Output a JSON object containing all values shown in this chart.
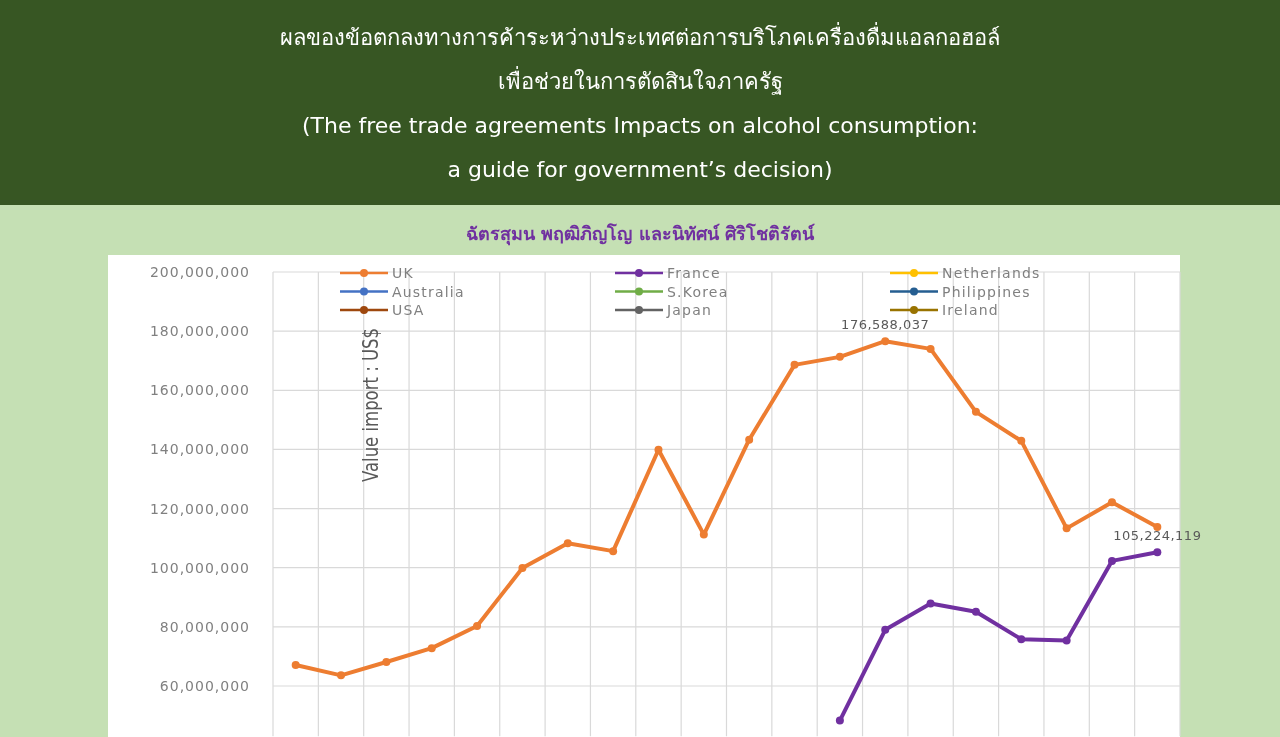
{
  "chart_data": {
    "type": "line",
    "title": "ผลของข้อตกลงทางการค้าระหว่างประเทศต่อการบริโภคเครื่องดื่มแอลกอฮอล์\nเพื่อช่วยในการตัดสินใจภาครัฐ\n(The free trade agreements Impacts on alcohol consumption:\na guide for government’s decision)",
    "subtitle": "ฉัตรสุมน พฤฒิภิญโญ  และนิทัศน์ ศิริโชติรัตน์",
    "ylabel": "Value import : US$",
    "categories": [
      null,
      null,
      null,
      null,
      null,
      null,
      null,
      null,
      null,
      null,
      null,
      null,
      null,
      null,
      null,
      null,
      null,
      null,
      null,
      null
    ],
    "ylim": [
      43000000,
      200000000
    ],
    "yticks": [
      {
        "value": 60000000,
        "label": "60,000,000"
      },
      {
        "value": 80000000,
        "label": "80,000,000"
      },
      {
        "value": 100000000,
        "label": "100,000,000"
      },
      {
        "value": 120000000,
        "label": "120,000,000"
      },
      {
        "value": 140000000,
        "label": "140,000,000"
      },
      {
        "value": 160000000,
        "label": "160,000,000"
      },
      {
        "value": 180000000,
        "label": "180,000,000"
      },
      {
        "value": 200000000,
        "label": "200,000,000"
      }
    ],
    "grid": true,
    "legend": "top",
    "marker": "circle",
    "line_style": "solid",
    "series": [
      {
        "name": "UK",
        "color": "#ed7d31",
        "values": [
          67100000,
          63600000,
          68100000,
          72800000,
          80300000,
          99900000,
          108300000,
          105600000,
          139900000,
          111200000,
          143300000,
          168600000,
          171300000,
          176588037,
          174000000,
          152700000,
          142900000,
          113300000,
          122100000,
          113800000
        ],
        "value_labels": [
          null,
          null,
          null,
          null,
          null,
          null,
          null,
          null,
          null,
          null,
          null,
          null,
          null,
          "176,588,037",
          null,
          null,
          null,
          null,
          null,
          null
        ]
      },
      {
        "name": "France",
        "color": "#7030a0",
        "values": [
          null,
          null,
          null,
          null,
          null,
          null,
          null,
          null,
          null,
          null,
          null,
          null,
          48300000,
          79000000,
          87900000,
          85100000,
          75800000,
          75400000,
          102300000,
          105224119
        ],
        "value_labels": [
          null,
          null,
          null,
          null,
          null,
          null,
          null,
          null,
          null,
          null,
          null,
          null,
          null,
          null,
          null,
          null,
          null,
          null,
          null,
          "105,224,119"
        ]
      },
      {
        "name": "Netherlands",
        "color": "#ffc000",
        "values": [
          null,
          null,
          null,
          null,
          null,
          null,
          null,
          null,
          null,
          null,
          null,
          null,
          null,
          null,
          null,
          null,
          null,
          null,
          null,
          null
        ]
      },
      {
        "name": "Australia",
        "color": "#4472c4",
        "values": [
          null,
          null,
          null,
          null,
          null,
          null,
          null,
          null,
          null,
          null,
          null,
          null,
          null,
          null,
          null,
          null,
          null,
          null,
          null,
          null
        ]
      },
      {
        "name": "S.Korea",
        "color": "#70ad47",
        "values": [
          null,
          null,
          null,
          null,
          null,
          null,
          null,
          null,
          null,
          null,
          null,
          null,
          null,
          null,
          null,
          null,
          null,
          null,
          null,
          null
        ]
      },
      {
        "name": "Philippines",
        "color": "#255e91",
        "values": [
          null,
          null,
          null,
          null,
          null,
          null,
          null,
          null,
          null,
          null,
          null,
          null,
          null,
          null,
          null,
          null,
          null,
          null,
          null,
          null
        ]
      },
      {
        "name": "USA",
        "color": "#9e480e",
        "values": [
          null,
          null,
          null,
          null,
          null,
          null,
          null,
          null,
          null,
          null,
          null,
          null,
          null,
          null,
          null,
          null,
          null,
          null,
          null,
          null
        ]
      },
      {
        "name": "Japan",
        "color": "#636363",
        "values": [
          null,
          null,
          null,
          null,
          null,
          null,
          null,
          null,
          null,
          null,
          null,
          null,
          null,
          null,
          null,
          null,
          null,
          null,
          null,
          null
        ]
      },
      {
        "name": "Ireland",
        "color": "#997300",
        "values": [
          null,
          null,
          null,
          null,
          null,
          null,
          null,
          null,
          null,
          null,
          null,
          null,
          null,
          null,
          null,
          null,
          null,
          null,
          null,
          null
        ]
      }
    ]
  }
}
